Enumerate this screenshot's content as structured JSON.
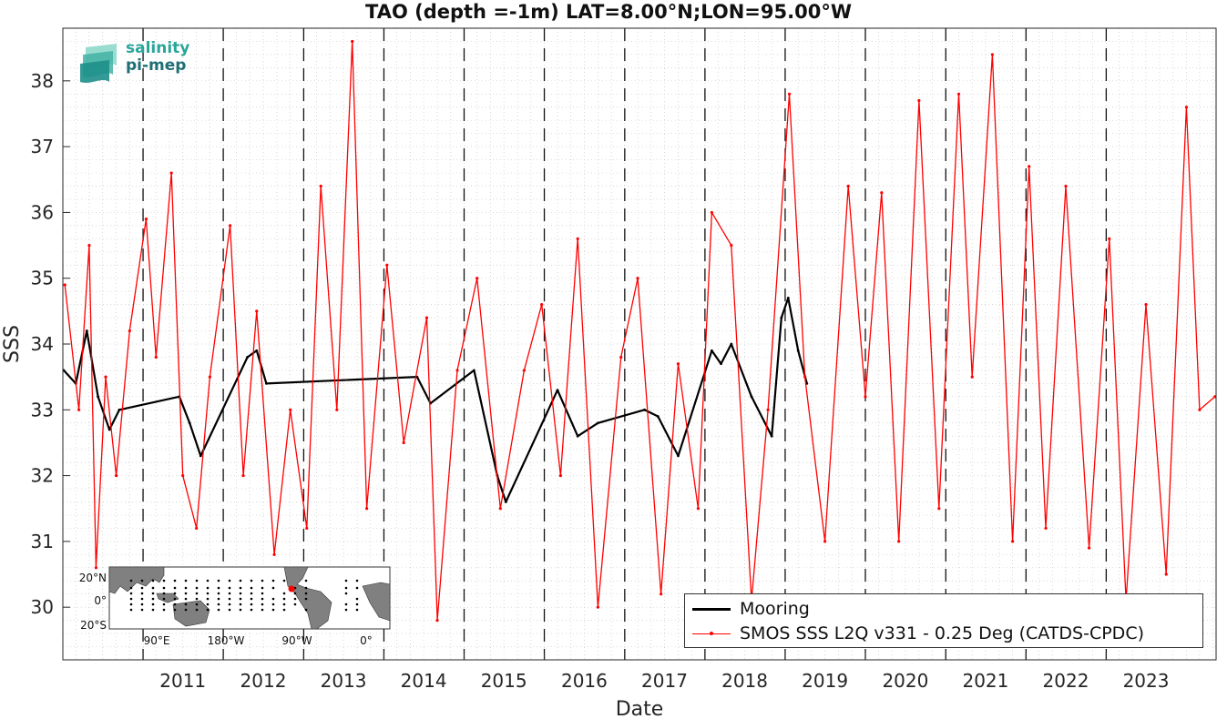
{
  "logo": {
    "line1": "salinity",
    "line2": "pi-mep"
  },
  "chart_data": {
    "type": "line",
    "title": "TAO (depth =-1m) LAT=8.00°N;LON=95.00°W",
    "xlabel": "Date",
    "ylabel": "SSS",
    "xlim": [
      "2010-01-01",
      "2024-05-15"
    ],
    "ylim": [
      29.2,
      38.8
    ],
    "x_ticks": [
      "2011",
      "2012",
      "2013",
      "2014",
      "2015",
      "2016",
      "2017",
      "2018",
      "2019",
      "2020",
      "2021",
      "2022",
      "2023"
    ],
    "y_ticks": [
      30,
      31,
      32,
      33,
      34,
      35,
      36,
      37,
      38
    ],
    "grid": true,
    "year_separators": "dashed vertical lines at each year start",
    "legend_position": "bottom-right",
    "series": [
      {
        "name": "Mooring",
        "color": "#000000",
        "values": [
          {
            "x": "2010-01-05",
            "y": 33.6
          },
          {
            "x": "2010-03-01",
            "y": 33.4
          },
          {
            "x": "2010-04-20",
            "y": 34.2
          },
          {
            "x": "2010-06-10",
            "y": 33.2
          },
          {
            "x": "2010-08-01",
            "y": 32.7
          },
          {
            "x": "2010-09-15",
            "y": 33.0
          },
          {
            "x": "2011-06-15",
            "y": 33.2
          },
          {
            "x": "2011-08-01",
            "y": 32.8
          },
          {
            "x": "2011-09-20",
            "y": 32.3
          },
          {
            "x": "2012-04-20",
            "y": 33.8
          },
          {
            "x": "2012-06-01",
            "y": 33.9
          },
          {
            "x": "2012-07-15",
            "y": 33.4
          },
          {
            "x": "2014-06-01",
            "y": 33.5
          },
          {
            "x": "2014-08-01",
            "y": 33.1
          },
          {
            "x": "2015-02-15",
            "y": 33.6
          },
          {
            "x": "2015-06-01",
            "y": 32.0
          },
          {
            "x": "2015-07-10",
            "y": 31.6
          },
          {
            "x": "2016-03-01",
            "y": 33.3
          },
          {
            "x": "2016-06-01",
            "y": 32.6
          },
          {
            "x": "2016-09-01",
            "y": 32.8
          },
          {
            "x": "2017-04-01",
            "y": 33.0
          },
          {
            "x": "2017-06-01",
            "y": 32.9
          },
          {
            "x": "2017-09-01",
            "y": 32.3
          },
          {
            "x": "2018-02-01",
            "y": 33.9
          },
          {
            "x": "2018-03-15",
            "y": 33.7
          },
          {
            "x": "2018-05-01",
            "y": 34.0
          },
          {
            "x": "2018-08-01",
            "y": 33.2
          },
          {
            "x": "2018-11-01",
            "y": 32.6
          },
          {
            "x": "2018-12-15",
            "y": 34.4
          },
          {
            "x": "2019-01-15",
            "y": 34.7
          },
          {
            "x": "2019-03-01",
            "y": 33.9
          },
          {
            "x": "2019-04-10",
            "y": 33.4
          }
        ]
      },
      {
        "name": "SMOS SSS L2Q v331 - 0.25 Deg (CATDS-CPDC)",
        "color": "#ff0000",
        "values": [
          {
            "x": "2010-01-10",
            "y": 34.9
          },
          {
            "x": "2010-03-15",
            "y": 33.0
          },
          {
            "x": "2010-05-01",
            "y": 35.5
          },
          {
            "x": "2010-06-01",
            "y": 30.6
          },
          {
            "x": "2010-07-15",
            "y": 33.5
          },
          {
            "x": "2010-09-01",
            "y": 32.0
          },
          {
            "x": "2010-11-01",
            "y": 34.2
          },
          {
            "x": "2011-01-15",
            "y": 35.9
          },
          {
            "x": "2011-03-01",
            "y": 33.8
          },
          {
            "x": "2011-05-10",
            "y": 36.6
          },
          {
            "x": "2011-07-01",
            "y": 32.0
          },
          {
            "x": "2011-09-01",
            "y": 31.2
          },
          {
            "x": "2011-11-01",
            "y": 33.5
          },
          {
            "x": "2012-02-01",
            "y": 35.8
          },
          {
            "x": "2012-04-01",
            "y": 32.0
          },
          {
            "x": "2012-06-01",
            "y": 34.5
          },
          {
            "x": "2012-08-20",
            "y": 30.8
          },
          {
            "x": "2012-11-01",
            "y": 33.0
          },
          {
            "x": "2013-01-15",
            "y": 31.2
          },
          {
            "x": "2013-03-20",
            "y": 36.4
          },
          {
            "x": "2013-06-01",
            "y": 33.0
          },
          {
            "x": "2013-08-10",
            "y": 38.6
          },
          {
            "x": "2013-10-15",
            "y": 31.5
          },
          {
            "x": "2014-01-15",
            "y": 35.2
          },
          {
            "x": "2014-04-01",
            "y": 32.5
          },
          {
            "x": "2014-07-15",
            "y": 34.4
          },
          {
            "x": "2014-09-01",
            "y": 29.8
          },
          {
            "x": "2014-12-01",
            "y": 33.6
          },
          {
            "x": "2015-03-01",
            "y": 35.0
          },
          {
            "x": "2015-06-15",
            "y": 31.5
          },
          {
            "x": "2015-10-01",
            "y": 33.6
          },
          {
            "x": "2015-12-20",
            "y": 34.6
          },
          {
            "x": "2016-03-15",
            "y": 32.0
          },
          {
            "x": "2016-06-01",
            "y": 35.6
          },
          {
            "x": "2016-09-01",
            "y": 30.0
          },
          {
            "x": "2016-12-15",
            "y": 33.8
          },
          {
            "x": "2017-03-01",
            "y": 35.0
          },
          {
            "x": "2017-06-15",
            "y": 30.2
          },
          {
            "x": "2017-09-01",
            "y": 33.7
          },
          {
            "x": "2017-12-01",
            "y": 31.5
          },
          {
            "x": "2018-02-01",
            "y": 36.0
          },
          {
            "x": "2018-05-01",
            "y": 35.5
          },
          {
            "x": "2018-08-01",
            "y": 30.1
          },
          {
            "x": "2018-10-15",
            "y": 33.0
          },
          {
            "x": "2019-01-20",
            "y": 37.8
          },
          {
            "x": "2019-04-01",
            "y": 33.5
          },
          {
            "x": "2019-07-01",
            "y": 31.0
          },
          {
            "x": "2019-10-15",
            "y": 36.4
          },
          {
            "x": "2020-01-01",
            "y": 33.2
          },
          {
            "x": "2020-03-15",
            "y": 36.3
          },
          {
            "x": "2020-06-01",
            "y": 31.0
          },
          {
            "x": "2020-09-01",
            "y": 37.7
          },
          {
            "x": "2020-12-01",
            "y": 31.5
          },
          {
            "x": "2021-03-01",
            "y": 37.8
          },
          {
            "x": "2021-05-01",
            "y": 33.5
          },
          {
            "x": "2021-08-01",
            "y": 38.4
          },
          {
            "x": "2021-11-01",
            "y": 31.0
          },
          {
            "x": "2022-01-15",
            "y": 36.7
          },
          {
            "x": "2022-04-01",
            "y": 31.2
          },
          {
            "x": "2022-07-01",
            "y": 36.4
          },
          {
            "x": "2022-10-15",
            "y": 30.9
          },
          {
            "x": "2023-01-15",
            "y": 35.6
          },
          {
            "x": "2023-04-01",
            "y": 30.1
          },
          {
            "x": "2023-07-01",
            "y": 34.6
          },
          {
            "x": "2023-10-01",
            "y": 30.5
          },
          {
            "x": "2024-01-01",
            "y": 37.6
          },
          {
            "x": "2024-03-01",
            "y": 33.0
          },
          {
            "x": "2024-05-10",
            "y": 33.2
          }
        ]
      }
    ]
  },
  "inset_map": {
    "lat_labels": [
      "20°N",
      "0°",
      "20°S"
    ],
    "lon_labels": [
      "90°E",
      "180°W",
      "90°W",
      "0°"
    ],
    "land_color": "#808080",
    "station_color": "#000000",
    "highlight_color": "#ff0000"
  }
}
